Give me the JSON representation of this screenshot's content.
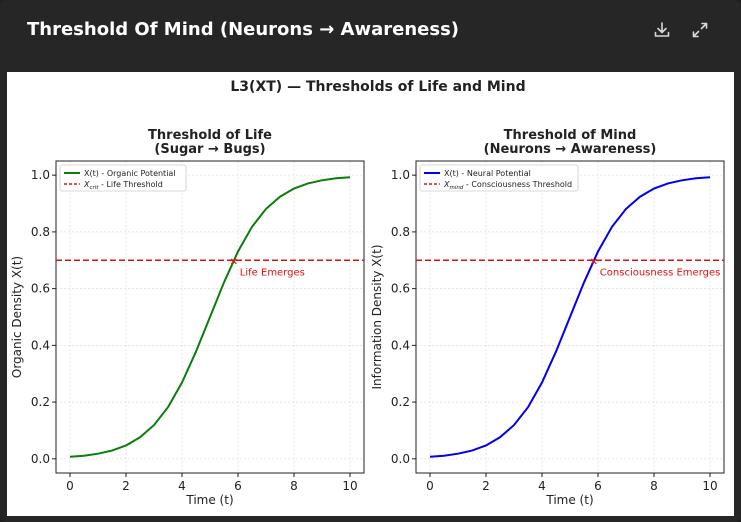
{
  "window": {
    "title": "Threshold Of Mind (Neurons → Awareness)",
    "download_icon": "download-icon",
    "expand_icon": "expand-icon"
  },
  "figure": {
    "suptitle": "L3(XT) — Thresholds of Life and Mind"
  },
  "chart_data": [
    {
      "type": "line",
      "title_line1": "Threshold of Life",
      "title_line2": "(Sugar → Bugs)",
      "xlabel": "Time (t)",
      "ylabel": "Organic Density X(t)",
      "xlim": [
        -0.5,
        10.5
      ],
      "ylim": [
        -0.05,
        1.05
      ],
      "xticks": [
        "0",
        "2",
        "4",
        "6",
        "8",
        "10"
      ],
      "yticks": [
        "0.0",
        "0.2",
        "0.4",
        "0.6",
        "0.8",
        "1.0"
      ],
      "grid": true,
      "legend_position": "top-left",
      "series": [
        {
          "name": "X(t) - Organic Potential",
          "color": "#0a7d0a",
          "x": [
            0,
            0.5,
            1,
            1.5,
            2,
            2.5,
            3,
            3.5,
            4,
            4.5,
            5,
            5.5,
            6,
            6.5,
            7,
            7.5,
            8,
            8.5,
            9,
            9.5,
            10
          ],
          "y": [
            0.007,
            0.011,
            0.018,
            0.029,
            0.047,
            0.076,
            0.119,
            0.182,
            0.269,
            0.378,
            0.5,
            0.622,
            0.731,
            0.818,
            0.881,
            0.924,
            0.953,
            0.971,
            0.982,
            0.989,
            0.993
          ]
        }
      ],
      "threshold": {
        "name": "X_crit - Life Threshold",
        "legend_symbol": "X",
        "legend_subscript": "crit",
        "legend_text": " - Life Threshold",
        "y": 0.7,
        "color": "#e01010"
      },
      "crossing": {
        "x": 5.85,
        "y": 0.7,
        "label": "Life Emerges"
      }
    },
    {
      "type": "line",
      "title_line1": "Threshold of Mind",
      "title_line2": "(Neurons → Awareness)",
      "xlabel": "Time (t)",
      "ylabel": "Information Density X(t)",
      "xlim": [
        -0.5,
        10.5
      ],
      "ylim": [
        -0.05,
        1.05
      ],
      "xticks": [
        "0",
        "2",
        "4",
        "6",
        "8",
        "10"
      ],
      "yticks": [
        "0.0",
        "0.2",
        "0.4",
        "0.6",
        "0.8",
        "1.0"
      ],
      "grid": true,
      "legend_position": "top-left",
      "series": [
        {
          "name": "X(t) - Neural Potential",
          "color": "#0000ee",
          "x": [
            0,
            0.5,
            1,
            1.5,
            2,
            2.5,
            3,
            3.5,
            4,
            4.5,
            5,
            5.5,
            6,
            6.5,
            7,
            7.5,
            8,
            8.5,
            9,
            9.5,
            10
          ],
          "y": [
            0.007,
            0.011,
            0.018,
            0.029,
            0.047,
            0.076,
            0.119,
            0.182,
            0.269,
            0.378,
            0.5,
            0.622,
            0.731,
            0.818,
            0.881,
            0.924,
            0.953,
            0.971,
            0.982,
            0.989,
            0.993
          ]
        }
      ],
      "threshold": {
        "name": "X_mind - Consciousness Threshold",
        "legend_symbol": "X",
        "legend_subscript": "mind",
        "legend_text": " - Consciousness Threshold",
        "y": 0.7,
        "color": "#e01010"
      },
      "crossing": {
        "x": 5.85,
        "y": 0.7,
        "label": "Consciousness Emerges"
      }
    }
  ]
}
